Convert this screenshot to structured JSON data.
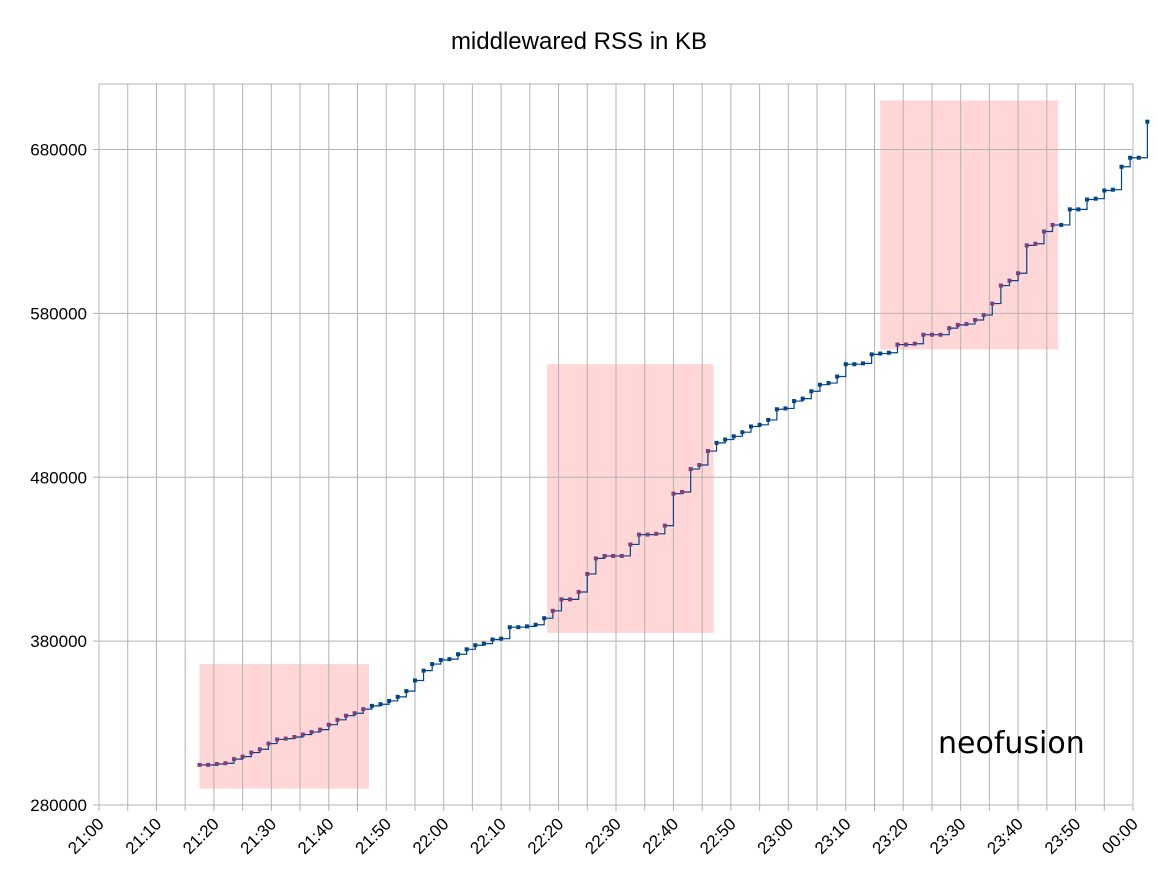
{
  "chart_data": {
    "type": "line",
    "title": "middlewared RSS in KB",
    "xlabel": "",
    "ylabel": "",
    "annotation": "neofusion",
    "x_ticks": [
      "21:00",
      "21:10",
      "21:20",
      "21:30",
      "21:40",
      "21:50",
      "22:00",
      "22:10",
      "22:20",
      "22:30",
      "22:40",
      "22:50",
      "23:00",
      "23:10",
      "23:20",
      "23:30",
      "23:40",
      "23:50",
      "00:00"
    ],
    "xlim_minutes": [
      0,
      180
    ],
    "y_ticks": [
      280000,
      380000,
      480000,
      580000,
      680000
    ],
    "ylim": [
      280000,
      720000
    ],
    "grid": true,
    "legend": "none",
    "series": [
      {
        "color": "#004586",
        "points": [
          [
            17.5,
            304500
          ],
          [
            19,
            304500
          ],
          [
            20.5,
            305000
          ],
          [
            22,
            305500
          ],
          [
            23.5,
            308000
          ],
          [
            25,
            309500
          ],
          [
            26.5,
            312000
          ],
          [
            28,
            314000
          ],
          [
            29.5,
            317500
          ],
          [
            31,
            320000
          ],
          [
            32.5,
            320500
          ],
          [
            34,
            321500
          ],
          [
            35.5,
            323000
          ],
          [
            37,
            324500
          ],
          [
            38.5,
            326000
          ],
          [
            40,
            329000
          ],
          [
            41.5,
            332000
          ],
          [
            43,
            334500
          ],
          [
            44.5,
            336000
          ],
          [
            46,
            338500
          ],
          [
            47.5,
            340500
          ],
          [
            49,
            341500
          ],
          [
            50.5,
            343500
          ],
          [
            52,
            346000
          ],
          [
            53.5,
            349500
          ],
          [
            55,
            356000
          ],
          [
            56.5,
            362000
          ],
          [
            58,
            366000
          ],
          [
            59.5,
            368500
          ],
          [
            61,
            369000
          ],
          [
            62.5,
            372000
          ],
          [
            64,
            375000
          ],
          [
            65.5,
            377500
          ],
          [
            67,
            378500
          ],
          [
            68.5,
            381000
          ],
          [
            70,
            381500
          ],
          [
            71.5,
            388500
          ],
          [
            73,
            388500
          ],
          [
            74.5,
            389000
          ],
          [
            76,
            390000
          ],
          [
            77.5,
            394000
          ],
          [
            79,
            398500
          ],
          [
            80.5,
            405500
          ],
          [
            82,
            405500
          ],
          [
            83.5,
            410000
          ],
          [
            85,
            421000
          ],
          [
            86.5,
            430500
          ],
          [
            88,
            432000
          ],
          [
            89.5,
            432000
          ],
          [
            91,
            432000
          ],
          [
            92.5,
            439000
          ],
          [
            94,
            445000
          ],
          [
            95.5,
            445000
          ],
          [
            97,
            445500
          ],
          [
            98.5,
            450500
          ],
          [
            100,
            470000
          ],
          [
            101.5,
            471000
          ],
          [
            103,
            485000
          ],
          [
            104.5,
            487500
          ],
          [
            106,
            496000
          ],
          [
            107.5,
            501000
          ],
          [
            109,
            503000
          ],
          [
            110.5,
            505000
          ],
          [
            112,
            507500
          ],
          [
            113.5,
            511000
          ],
          [
            115,
            512000
          ],
          [
            116.5,
            515000
          ],
          [
            118,
            521500
          ],
          [
            119.5,
            522000
          ],
          [
            121,
            526500
          ],
          [
            122.5,
            528000
          ],
          [
            124,
            532500
          ],
          [
            125.5,
            536500
          ],
          [
            127,
            537500
          ],
          [
            128.5,
            541500
          ],
          [
            130,
            549000
          ],
          [
            131.5,
            549000
          ],
          [
            133,
            549500
          ],
          [
            134.5,
            555000
          ],
          [
            136,
            555500
          ],
          [
            137.5,
            556000
          ],
          [
            139,
            561000
          ],
          [
            140.5,
            561000
          ],
          [
            142,
            561500
          ],
          [
            143.5,
            567000
          ],
          [
            145,
            567000
          ],
          [
            146.5,
            567000
          ],
          [
            148,
            571000
          ],
          [
            149.5,
            573000
          ],
          [
            151,
            573500
          ],
          [
            152.5,
            576000
          ],
          [
            154,
            579000
          ],
          [
            155.5,
            586000
          ],
          [
            157,
            597000
          ],
          [
            158.5,
            600000
          ],
          [
            160,
            604500
          ],
          [
            161.5,
            621500
          ],
          [
            163,
            622500
          ],
          [
            164.5,
            630000
          ],
          [
            166,
            634000
          ],
          [
            167.5,
            634000
          ],
          [
            169,
            643500
          ],
          [
            170.5,
            643500
          ],
          [
            172,
            649500
          ],
          [
            173.5,
            650000
          ],
          [
            175,
            655000
          ],
          [
            176.5,
            655500
          ],
          [
            178,
            669500
          ],
          [
            179.5,
            675000
          ],
          [
            181,
            675000
          ],
          [
            182.5,
            697000
          ]
        ]
      }
    ],
    "highlight_regions": [
      {
        "x": [
          17.5,
          47
        ],
        "y": [
          290000,
          366000
        ],
        "color": "#ffd7d7"
      },
      {
        "x": [
          78,
          107
        ],
        "y": [
          385000,
          549000
        ],
        "color": "#ffd7d7"
      },
      {
        "x": [
          136,
          167
        ],
        "y": [
          558000,
          710000
        ],
        "color": "#ffd7d7"
      }
    ],
    "highlight_series_color": "#7e3d7e"
  }
}
